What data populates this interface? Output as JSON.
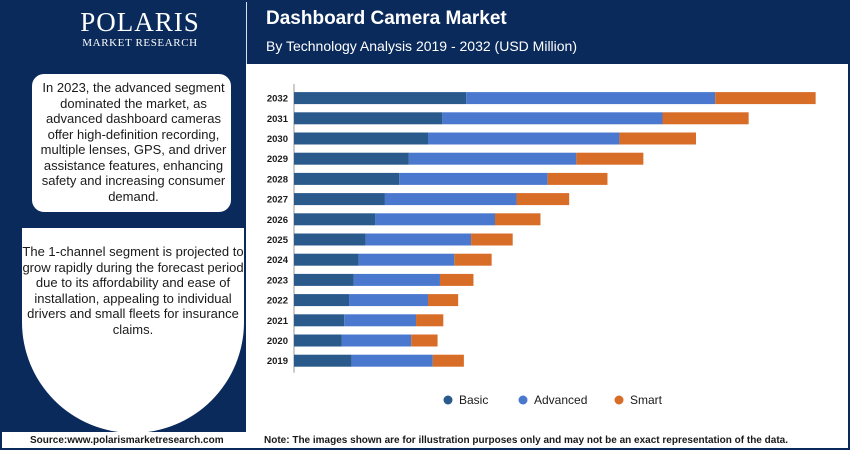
{
  "brand": {
    "name": "POLARIS",
    "tagline": "MARKET RESEARCH"
  },
  "header": {
    "title": "Dashboard Camera Market",
    "subtitle": "By Technology Analysis 2019 - 2032 (USD Million)"
  },
  "notes": [
    "In 2023, the advanced segment dominated the market, as advanced dashboard cameras offer high-definition recording, multiple lenses, GPS, and driver assistance features, enhancing safety and increasing consumer demand.",
    "The 1-channel segment is projected to grow rapidly during the forecast period due to its affordability and ease of installation, appealing to individual drivers and small fleets for insurance claims."
  ],
  "footer": {
    "source": "Source:www.polarismarketresearch.com",
    "disclaimer": "Note: The images shown are for illustration purposes only and may not be an exact representation of the data."
  },
  "colors": {
    "navy": "#0b2a5c",
    "basic": "#2a5a8c",
    "advanced": "#4a78cf",
    "smart": "#d86d28"
  },
  "chart_data": {
    "type": "bar",
    "orientation": "horizontal",
    "stacked": true,
    "categories": [
      "2032",
      "2031",
      "2030",
      "2029",
      "2028",
      "2027",
      "2026",
      "2025",
      "2024",
      "2023",
      "2022",
      "2021",
      "2020",
      "2019"
    ],
    "series": [
      {
        "name": "Basic",
        "color": "#2a5a8c",
        "values": [
          3.6,
          3.1,
          2.8,
          2.4,
          2.2,
          1.9,
          1.7,
          1.5,
          1.35,
          1.25,
          1.15,
          1.05,
          1.0,
          1.2
        ]
      },
      {
        "name": "Advanced",
        "color": "#4a78cf",
        "values": [
          5.2,
          4.6,
          4.0,
          3.5,
          3.1,
          2.75,
          2.5,
          2.2,
          2.0,
          1.8,
          1.65,
          1.5,
          1.45,
          1.7
        ]
      },
      {
        "name": "Smart",
        "color": "#d86d28",
        "values": [
          2.1,
          1.8,
          1.6,
          1.4,
          1.25,
          1.1,
          0.95,
          0.87,
          0.78,
          0.7,
          0.63,
          0.57,
          0.55,
          0.65
        ]
      }
    ],
    "xlim": [
      0,
      11.2
    ],
    "grid": false,
    "legend_position": "bottom"
  }
}
